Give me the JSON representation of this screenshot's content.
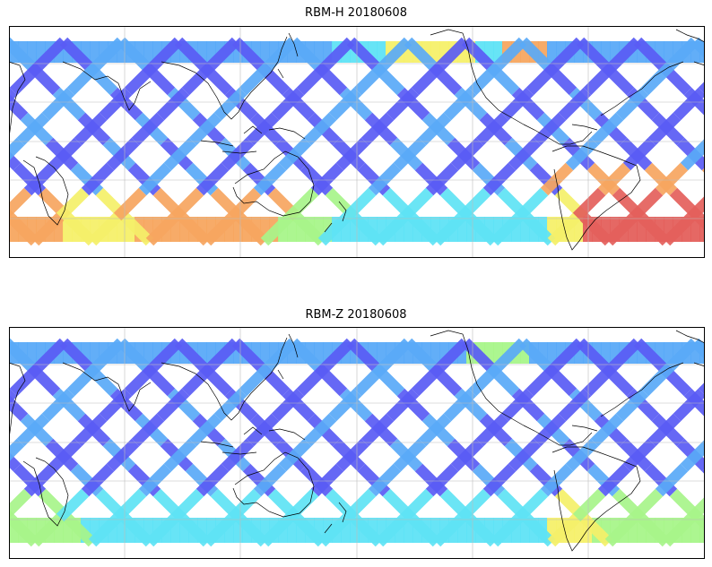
{
  "panels": [
    {
      "id": "rbm-h",
      "title": "RBM-H 20180608"
    },
    {
      "id": "rbm-z",
      "title": "RBM-Z 20180608"
    }
  ],
  "colors": {
    "low": "#5a5cf5",
    "lowmid": "#5aaaf8",
    "mid": "#5fe3f5",
    "midhigh": "#a8f58a",
    "high": "#f5f06a",
    "higher": "#f7a660",
    "max": "#e4605c",
    "coast": "#000000",
    "grid": "#bcbcbc"
  }
}
